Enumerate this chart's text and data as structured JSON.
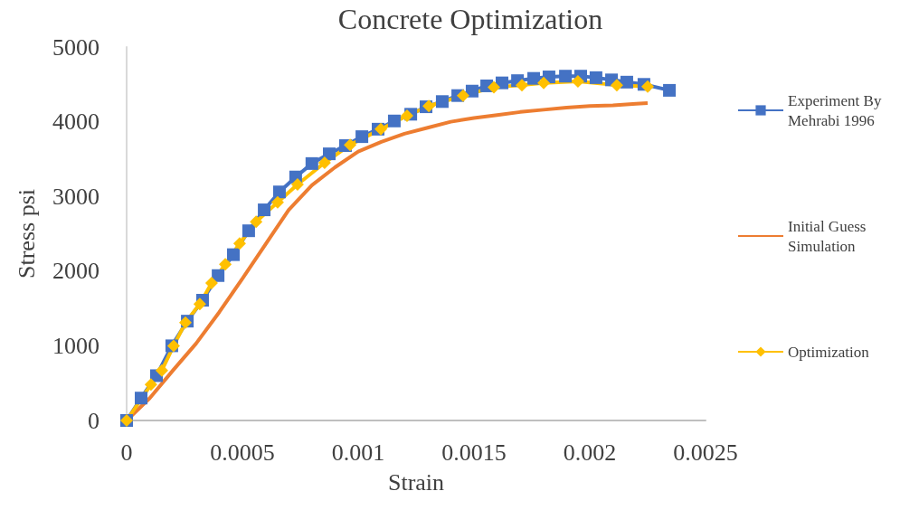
{
  "chart_data": {
    "type": "line",
    "title": "Concrete Optimization",
    "xlabel": "Strain",
    "ylabel": "Stress psi",
    "xlim": [
      0,
      0.0025
    ],
    "xticks": [
      0,
      0.0005,
      0.001,
      0.0015,
      0.002,
      0.0025
    ],
    "ylim": [
      0,
      5000
    ],
    "yticks": [
      0,
      1000,
      2000,
      3000,
      4000,
      5000
    ],
    "grid": false,
    "legend": "right",
    "series": [
      {
        "name": "Experiment By Mehrabi 1996",
        "color": "#4472c4",
        "marker": "square",
        "x": [
          0,
          6.25e-05,
          0.000129,
          0.000195,
          0.000262,
          0.000328,
          0.000395,
          0.000461,
          0.000527,
          0.000594,
          0.00066,
          0.00073,
          0.0008,
          0.000875,
          0.000945,
          0.001016,
          0.001086,
          0.001156,
          0.001227,
          0.001293,
          0.001363,
          0.00143,
          0.001492,
          0.001555,
          0.001621,
          0.001688,
          0.001758,
          0.001824,
          0.001895,
          0.001961,
          0.002027,
          0.002094,
          0.00216,
          0.002234,
          0.002344
        ],
        "values": [
          0,
          300,
          600,
          1000,
          1330,
          1610,
          1940,
          2220,
          2540,
          2820,
          3060,
          3260,
          3440,
          3570,
          3680,
          3800,
          3900,
          4010,
          4100,
          4200,
          4270,
          4350,
          4410,
          4480,
          4520,
          4550,
          4580,
          4600,
          4610,
          4610,
          4590,
          4560,
          4530,
          4500,
          4420
        ]
      },
      {
        "name": "Initial Guess Simulation",
        "color": "#ed7d31",
        "marker": "none",
        "x": [
          0,
          0.0001,
          0.0002,
          0.0003,
          0.0004,
          0.0005,
          0.0006,
          0.0007,
          0.0008,
          0.0009,
          0.001,
          0.0011,
          0.0012,
          0.0013,
          0.0014,
          0.0015,
          0.0016,
          0.0017,
          0.0018,
          0.0019,
          0.002,
          0.0021,
          0.0022,
          0.00225
        ],
        "values": [
          0,
          300,
          670,
          1030,
          1450,
          1900,
          2360,
          2820,
          3150,
          3390,
          3600,
          3730,
          3840,
          3920,
          4000,
          4050,
          4090,
          4130,
          4160,
          4190,
          4210,
          4220,
          4240,
          4250
        ]
      },
      {
        "name": "Optimization",
        "color": "#ffc000",
        "marker": "diamond",
        "x": [
          0,
          0.000105,
          0.000152,
          0.000203,
          0.000254,
          0.000316,
          0.000367,
          0.000426,
          0.000488,
          0.000559,
          0.000652,
          0.000738,
          0.000855,
          0.000965,
          0.001098,
          0.001211,
          0.001305,
          0.001453,
          0.001586,
          0.001707,
          0.001801,
          0.001949,
          0.002117,
          0.00225
        ],
        "values": [
          0,
          480,
          670,
          1000,
          1310,
          1560,
          1840,
          2090,
          2370,
          2660,
          2920,
          3160,
          3450,
          3690,
          3900,
          4080,
          4210,
          4350,
          4460,
          4490,
          4520,
          4540,
          4490,
          4470
        ]
      }
    ]
  }
}
